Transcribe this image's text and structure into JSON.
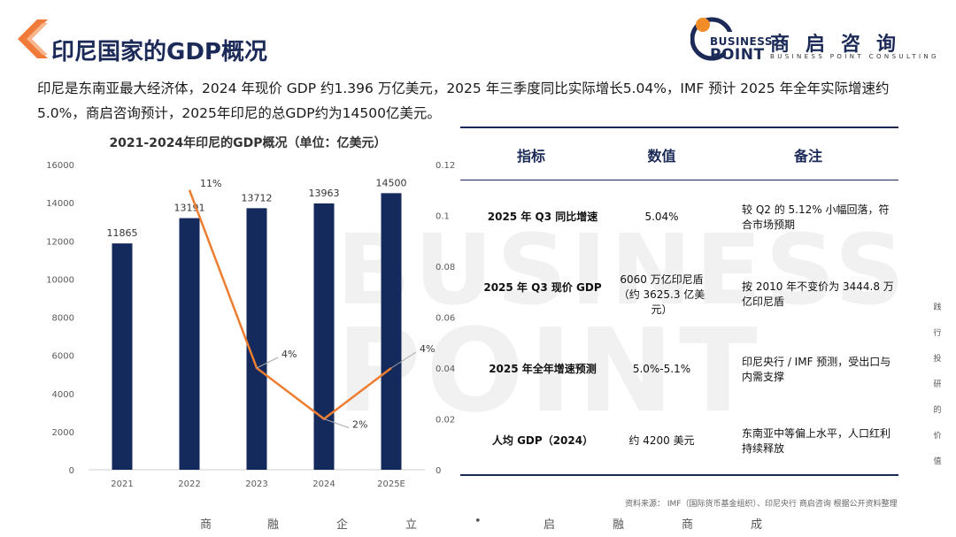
{
  "title": "印尼国家的GDP概况",
  "logo": {
    "brand_line1": "BUSINESS",
    "brand_line2": "POINT",
    "name_cn": "商启咨询",
    "name_en": "BUSINESS POINT CONSULTING",
    "colors": {
      "navy": "#1b2a57",
      "orange": "#f28c28"
    }
  },
  "intro": "印尼是东南亚最大经济体，2024 年现价 GDP 约1.396 万亿美元，2025 年三季度同比实际增长5.04%，IMF 预计 2025 年全年实际增速约 5.0%，商启咨询预计，2025年印尼的总GDP约为14500亿美元。",
  "chart_data": {
    "type": "bar",
    "title": "2021-2024年印尼的GDP概况（单位：亿美元）",
    "categories": [
      "2021",
      "2022",
      "2023",
      "2024",
      "2025E"
    ],
    "series": [
      {
        "type": "bar",
        "values": [
          11865,
          13191,
          13712,
          13963,
          14500
        ],
        "color": "#142a5c"
      },
      {
        "type": "line",
        "axis": "right",
        "values": [
          null,
          0.11,
          0.04,
          0.02,
          0.04
        ],
        "labels": [
          "",
          "11%",
          "4%",
          "2%",
          "4%"
        ],
        "color": "#ed7d31"
      }
    ],
    "ylim": [
      0,
      16000
    ],
    "y_ticks": [
      0,
      2000,
      4000,
      6000,
      8000,
      10000,
      12000,
      14000,
      16000
    ],
    "y2lim": [
      0,
      0.12
    ],
    "y2_ticks": [
      0,
      0.02,
      0.04,
      0.06,
      0.08,
      0.1,
      0.12
    ],
    "y2_tick_labels": [
      "0",
      "0.02",
      "0.04",
      "0.06",
      "0.08",
      "0.1",
      "0.12"
    ],
    "grid": false,
    "legend": "none"
  },
  "table": {
    "headers": [
      "指标",
      "数值",
      "备注"
    ],
    "rows": [
      {
        "indicator": "2025 年 Q3 同比增速",
        "value": "5.04%",
        "note": "较 Q2 的 5.12% 小幅回落，符合市场预期"
      },
      {
        "indicator": "2025 年 Q3 现价 GDP",
        "value": "6060 万亿印尼盾（约 3625.3 亿美元）",
        "note": "按 2010 年不变价为 3444.8 万亿印尼盾"
      },
      {
        "indicator": "2025 年全年增速预测",
        "value": "5.0%-5.1%",
        "note": "印尼央行 / IMF 预测，受出口与内需支撑"
      },
      {
        "indicator": "人均 GDP（2024）",
        "value": "约 4200 美元",
        "note": "东南亚中等偏上水平，人口红利持续释放"
      }
    ]
  },
  "source": "资料来源： IMF（国际货币基金组织）、印尼央行 商启咨询 根据公开资料整理",
  "side_text": [
    "践",
    "行",
    "投",
    "研",
    "的",
    "价",
    "值"
  ],
  "slogan": [
    "商",
    "融",
    "企",
    "立",
    "•",
    "启",
    "融",
    "商",
    "成"
  ],
  "watermark": [
    "BUSINESS",
    "POINT"
  ]
}
